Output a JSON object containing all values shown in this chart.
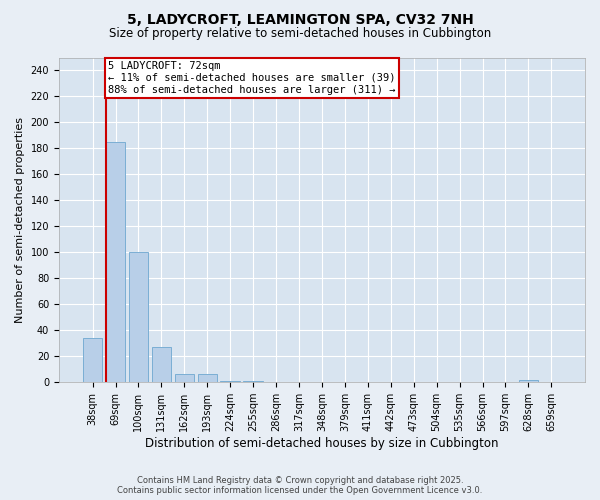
{
  "title": "5, LADYCROFT, LEAMINGTON SPA, CV32 7NH",
  "subtitle": "Size of property relative to semi-detached houses in Cubbington",
  "xlabel": "Distribution of semi-detached houses by size in Cubbington",
  "ylabel": "Number of semi-detached properties",
  "bar_color": "#b8cfe8",
  "bar_edge_color": "#7aaed4",
  "categories": [
    "38sqm",
    "69sqm",
    "100sqm",
    "131sqm",
    "162sqm",
    "193sqm",
    "224sqm",
    "255sqm",
    "286sqm",
    "317sqm",
    "348sqm",
    "379sqm",
    "411sqm",
    "442sqm",
    "473sqm",
    "504sqm",
    "535sqm",
    "566sqm",
    "597sqm",
    "628sqm",
    "659sqm"
  ],
  "values": [
    34,
    185,
    100,
    27,
    6,
    6,
    1,
    1,
    0,
    0,
    0,
    0,
    0,
    0,
    0,
    0,
    0,
    0,
    0,
    2,
    0
  ],
  "ylim": [
    0,
    250
  ],
  "yticks": [
    0,
    20,
    40,
    60,
    80,
    100,
    120,
    140,
    160,
    180,
    200,
    220,
    240
  ],
  "property_label": "5 LADYCROFT: 72sqm",
  "vline_x": 0.575,
  "annotation_line1": "← 11% of semi-detached houses are smaller (39)",
  "annotation_line2": "88% of semi-detached houses are larger (311) →",
  "annotation_box_color": "#ffffff",
  "annotation_box_edge": "#cc0000",
  "vline_color": "#cc0000",
  "footer_line1": "Contains HM Land Registry data © Crown copyright and database right 2025.",
  "footer_line2": "Contains public sector information licensed under the Open Government Licence v3.0.",
  "bg_color": "#e8eef5",
  "plot_bg_color": "#d8e4f0",
  "title_fontsize": 10,
  "subtitle_fontsize": 8.5,
  "ylabel_fontsize": 8,
  "xlabel_fontsize": 8.5,
  "tick_fontsize": 7,
  "annot_fontsize": 7.5,
  "footer_fontsize": 6
}
